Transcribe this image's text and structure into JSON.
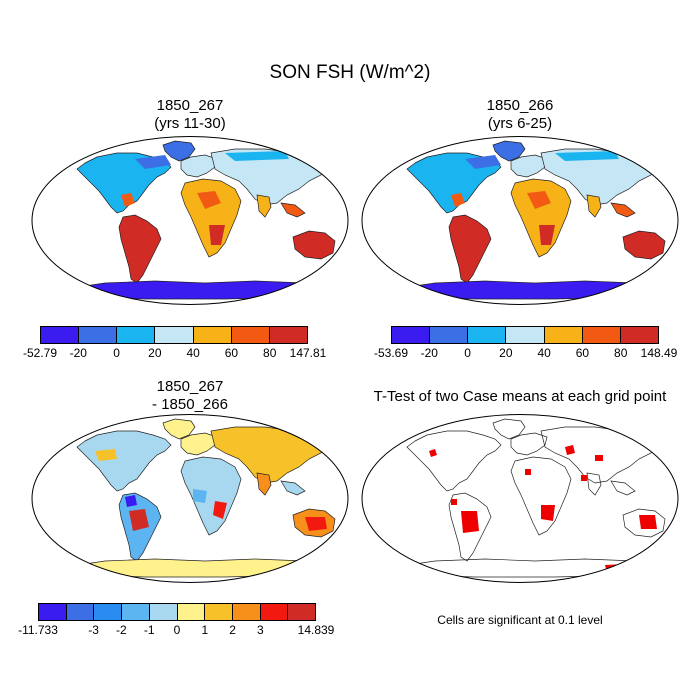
{
  "figure": {
    "title": "SON FSH (W/m^2)"
  },
  "panels": [
    {
      "id": "case1",
      "title": "1850_267",
      "subtitle": "(yrs 11-30)",
      "colorbar": {
        "colors": [
          "#3a1cf0",
          "#3c6fe6",
          "#1ab4f0",
          "#c5e6f4",
          "#f7b218",
          "#f25a14",
          "#d12b26"
        ],
        "labels": [
          "-52.79",
          "-20",
          "0",
          "20",
          "40",
          "60",
          "80",
          "147.81"
        ]
      }
    },
    {
      "id": "case2",
      "title": "1850_266",
      "subtitle": "(yrs 6-25)",
      "colorbar": {
        "colors": [
          "#3a1cf0",
          "#3c6fe6",
          "#1ab4f0",
          "#c5e6f4",
          "#f7b218",
          "#f25a14",
          "#d12b26"
        ],
        "labels": [
          "-53.69",
          "-20",
          "0",
          "20",
          "40",
          "60",
          "80",
          "148.49"
        ]
      }
    },
    {
      "id": "diff",
      "title": "1850_267",
      "subtitle": "- 1850_266",
      "colorbar": {
        "colors": [
          "#3a1cf0",
          "#3c6fe6",
          "#2a8cf0",
          "#5cb4f0",
          "#a8d8f0",
          "#fff28c",
          "#f7c12a",
          "#f7901a",
          "#f21a10",
          "#d12b26"
        ],
        "labels": [
          "-11.733",
          "-3",
          "-2",
          "-1",
          "0",
          "1",
          "2",
          "3",
          "14.839"
        ]
      }
    },
    {
      "id": "ttest",
      "title": "T-Test of two Case means at each grid point",
      "note": "Cells are significant at 0.1 level",
      "color": "#ee0000"
    }
  ]
}
